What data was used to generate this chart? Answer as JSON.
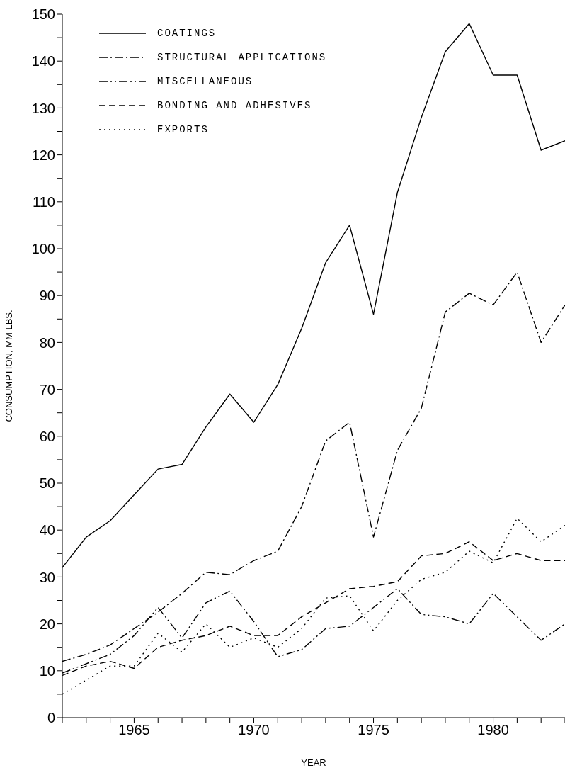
{
  "chart_data": {
    "type": "line",
    "xlabel": "YEAR",
    "ylabel": "CONSUMPTION, MM LBS.",
    "x": [
      1962,
      1963,
      1964,
      1965,
      1966,
      1967,
      1968,
      1969,
      1970,
      1971,
      1972,
      1973,
      1974,
      1975,
      1976,
      1977,
      1978,
      1979,
      1980,
      1981,
      1982,
      1983
    ],
    "series": [
      {
        "name": "COATINGS",
        "color": "#000000",
        "line_style": "solid",
        "values": [
          32,
          38.5,
          42,
          47.5,
          53,
          54,
          62,
          69,
          63,
          71,
          83,
          97,
          105,
          86,
          112,
          128,
          142,
          148,
          137,
          137,
          121,
          123
        ]
      },
      {
        "name": "STRUCTURAL APPLICATIONS",
        "color": "#000000",
        "line_style": "dashdot",
        "values": [
          12,
          13.5,
          15.5,
          19,
          22.5,
          26.5,
          31,
          30.5,
          33.5,
          35.5,
          45,
          59,
          63,
          38.5,
          57,
          66,
          86.5,
          90.5,
          88,
          95,
          80,
          88
        ]
      },
      {
        "name": "MISCELLANEOUS",
        "color": "#000000",
        "line_style": "dashdotdot",
        "values": [
          9.5,
          11.5,
          13.5,
          17.5,
          23.5,
          17,
          24.5,
          27,
          20.5,
          13,
          14.5,
          19,
          19.5,
          23.5,
          27.5,
          22,
          21.5,
          20,
          26.5,
          21.5,
          16.5,
          20
        ]
      },
      {
        "name": "BONDING AND ADHESIVES",
        "color": "#000000",
        "line_style": "dashed",
        "values": [
          9,
          11,
          12,
          10.5,
          15,
          16.5,
          17.5,
          19.5,
          17.5,
          17.5,
          21.5,
          24.5,
          27.5,
          28,
          29,
          34.5,
          35,
          37.5,
          33.5,
          35,
          33.5,
          33.5
        ]
      },
      {
        "name": "EXPORTS",
        "color": "#000000",
        "line_style": "dotted",
        "values": [
          5,
          8,
          11,
          11,
          18,
          14,
          20,
          15,
          17,
          15,
          19,
          25.5,
          26,
          18.5,
          25,
          29.5,
          31,
          35.5,
          33,
          42.5,
          37.5,
          41
        ]
      }
    ],
    "xlim": [
      1962,
      1983
    ],
    "xticks": [
      {
        "value": 1962,
        "label": null
      },
      {
        "value": 1963,
        "label": null
      },
      {
        "value": 1964,
        "label": null
      },
      1965,
      {
        "value": 1966,
        "label": null
      },
      {
        "value": 1967,
        "label": null
      },
      {
        "value": 1968,
        "label": null
      },
      {
        "value": 1969,
        "label": null
      },
      1970,
      {
        "value": 1971,
        "label": null
      },
      {
        "value": 1972,
        "label": null
      },
      {
        "value": 1973,
        "label": null
      },
      {
        "value": 1974,
        "label": null
      },
      1975,
      {
        "value": 1976,
        "label": null
      },
      {
        "value": 1977,
        "label": null
      },
      {
        "value": 1978,
        "label": null
      },
      {
        "value": 1979,
        "label": null
      },
      1980,
      {
        "value": 1981,
        "label": null
      },
      {
        "value": 1982,
        "label": null
      },
      {
        "value": 1983,
        "label": null
      }
    ],
    "ylim": [
      0,
      150
    ],
    "yticks": [
      0,
      {
        "value": 5,
        "label": null
      },
      10,
      {
        "value": 15,
        "label": null
      },
      20,
      {
        "value": 25,
        "label": null
      },
      30,
      {
        "value": 35,
        "label": null
      },
      40,
      {
        "value": 45,
        "label": null
      },
      50,
      {
        "value": 55,
        "label": null
      },
      60,
      {
        "value": 65,
        "label": null
      },
      70,
      {
        "value": 75,
        "label": null
      },
      80,
      {
        "value": 85,
        "label": null
      },
      90,
      {
        "value": 95,
        "label": null
      },
      100,
      {
        "value": 105,
        "label": null
      },
      110,
      {
        "value": 115,
        "label": null
      },
      120,
      {
        "value": 125,
        "label": null
      },
      130,
      {
        "value": 135,
        "label": null
      },
      140,
      {
        "value": 145,
        "label": null
      },
      150
    ],
    "grid": false,
    "legend": "top left",
    "marker": "none"
  }
}
